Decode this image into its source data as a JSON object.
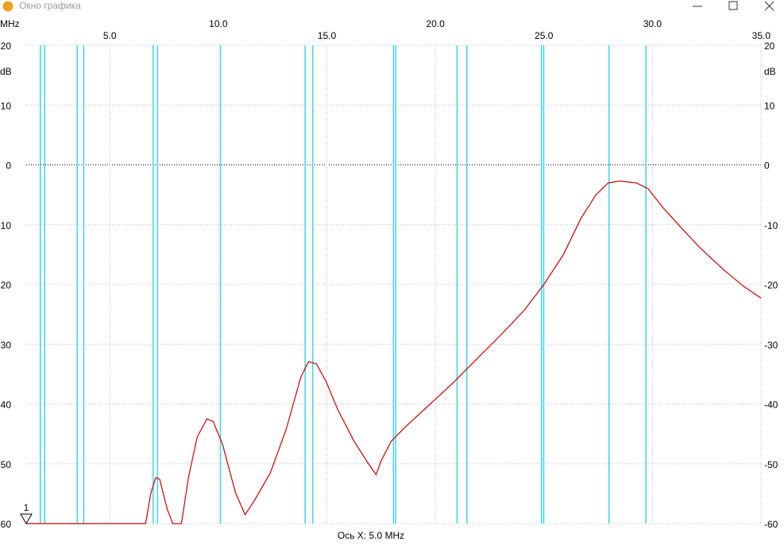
{
  "window_title": "Окно графика",
  "chart_data": {
    "type": "line",
    "x_unit": "MHz",
    "y_unit": "dB",
    "x_axis_note": "Ось X: 5.0 MHz",
    "marker_label": "1",
    "xlim": [
      1.15,
      35
    ],
    "ylim": [
      -60,
      20
    ],
    "xticks": [
      {
        "value": 5,
        "label": "5.0"
      },
      {
        "value": 10,
        "label": "10.0"
      },
      {
        "value": 15,
        "label": "15.0"
      },
      {
        "value": 20,
        "label": "20.0"
      },
      {
        "value": 25,
        "label": "25.0"
      },
      {
        "value": 30,
        "label": "30.0"
      },
      {
        "value": 35,
        "label": "35.0"
      }
    ],
    "yticks": [
      20,
      10,
      0,
      -10,
      -20,
      -30,
      -40,
      -50,
      -60
    ],
    "grid": true,
    "markers": [
      1.8,
      2.0,
      3.5,
      3.8,
      7.0,
      7.2,
      10.1,
      14.0,
      14.35,
      18.068,
      18.168,
      21.0,
      21.45,
      24.89,
      24.99,
      28.0,
      29.7
    ],
    "marker_color": "#3cd6e6",
    "x": [
      1.15,
      6.65,
      6.9,
      7.12,
      7.3,
      7.64,
      7.9,
      8.3,
      8.63,
      9.03,
      9.47,
      9.76,
      10.2,
      10.79,
      11.23,
      11.67,
      12.4,
      13.13,
      13.8,
      14.16,
      14.52,
      14.96,
      15.5,
      16.25,
      16.9,
      17.27,
      17.5,
      17.97,
      18.6,
      19.7,
      20.8,
      21.9,
      23.0,
      24.1,
      25.0,
      25.9,
      26.7,
      27.4,
      27.97,
      28.5,
      29.25,
      29.8,
      30.5,
      31.45,
      32.2,
      33.3,
      34.2,
      35
    ],
    "series": [
      {
        "color": "#cc0000",
        "values": [
          -60,
          -60,
          -54.8,
          -52.3,
          -52.6,
          -57.5,
          -60,
          -60,
          -52.2,
          -45.5,
          -42.5,
          -42.9,
          -46.8,
          -54.8,
          -58.5,
          -56.1,
          -51.5,
          -44.2,
          -35.5,
          -32.9,
          -33.3,
          -36.2,
          -40.9,
          -46.2,
          -49.9,
          -51.8,
          -49.5,
          -46.2,
          -43.9,
          -40.2,
          -36.5,
          -32.5,
          -28.5,
          -24.3,
          -20,
          -15,
          -9,
          -5,
          -3,
          -2.7,
          -3,
          -4,
          -7.2,
          -11,
          -13.9,
          -17.6,
          -20.3,
          -22.3
        ]
      }
    ]
  }
}
